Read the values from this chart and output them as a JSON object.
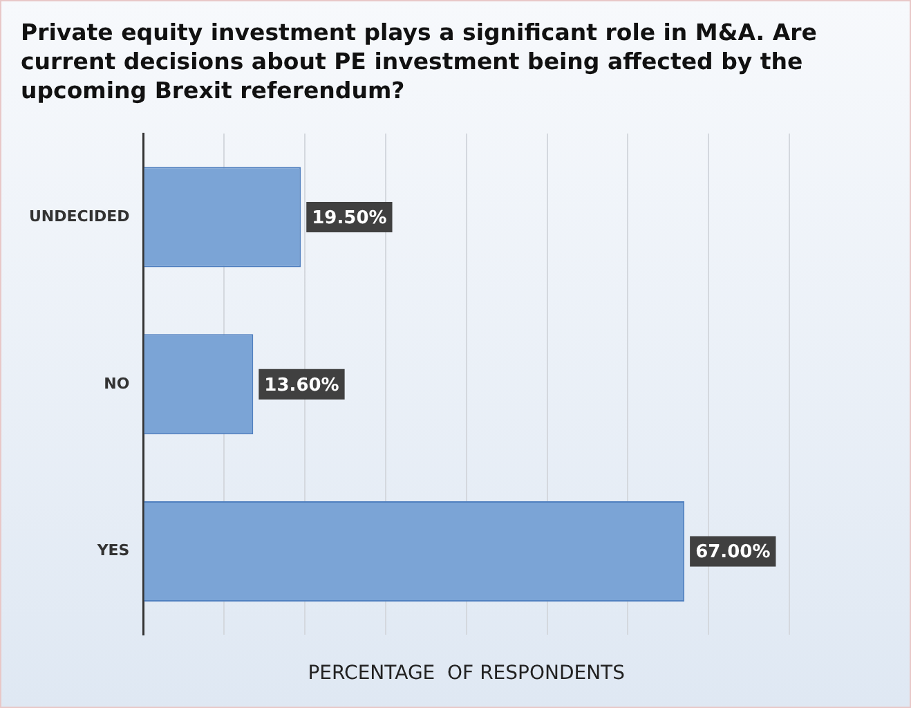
{
  "chart_data": {
    "type": "bar",
    "orientation": "horizontal",
    "title": "Private equity investment plays a significant role in M&A. Are current decisions about PE investment being affected by the upcoming Brexit referendum?",
    "xlabel": "PERCENTAGE  OF RESPONDENTS",
    "categories": [
      "UNDECIDED",
      "NO",
      "YES"
    ],
    "values": [
      19.5,
      13.6,
      67.0
    ],
    "value_labels": [
      "19.50%",
      "13.60%",
      "67.00%"
    ],
    "color": "#7ba4d6",
    "xlim": [
      0,
      80
    ],
    "xticks": [
      {
        "value": 0,
        "label": null
      },
      {
        "value": 10,
        "label": null
      },
      {
        "value": 20,
        "label": null
      },
      {
        "value": 30,
        "label": null
      },
      {
        "value": 40,
        "label": null
      },
      {
        "value": 50,
        "label": null
      },
      {
        "value": 60,
        "label": null
      },
      {
        "value": 70,
        "label": null
      },
      {
        "value": 80,
        "label": null
      }
    ],
    "grid": "x",
    "tick_labels": "y"
  }
}
